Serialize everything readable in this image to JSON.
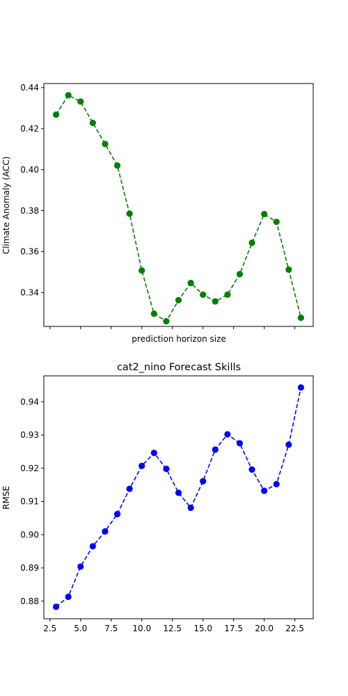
{
  "chart_data": [
    {
      "type": "line",
      "title": "",
      "xlabel": "prediction horizon size",
      "ylabel": "Climate Anomaly (ACC)",
      "xlim": [
        2,
        24
      ],
      "ylim": [
        0.3235,
        0.442
      ],
      "xticks": [
        2.5,
        5.0,
        7.5,
        10.0,
        12.5,
        15.0,
        17.5,
        20.0,
        22.5
      ],
      "xtick_labels_visible": false,
      "yticks": [
        0.34,
        0.36,
        0.38,
        0.4,
        0.42,
        0.44
      ],
      "ytick_labels": [
        "0.34",
        "0.36",
        "0.38",
        "0.40",
        "0.42",
        "0.44"
      ],
      "grid": false,
      "series": [
        {
          "color": "#008000",
          "line_style": "dashed",
          "marker": "circle",
          "x": [
            3,
            4,
            5,
            6,
            7,
            8,
            9,
            10,
            11,
            12,
            13,
            14,
            15,
            16,
            17,
            18,
            19,
            20,
            21,
            22,
            23
          ],
          "values": [
            0.4268,
            0.4363,
            0.4332,
            0.4228,
            0.4125,
            0.402,
            0.3785,
            0.3508,
            0.3297,
            0.326,
            0.3363,
            0.3447,
            0.339,
            0.3357,
            0.339,
            0.349,
            0.3643,
            0.3783,
            0.3745,
            0.3512,
            0.3277
          ]
        }
      ]
    },
    {
      "type": "line",
      "title": "cat2_nino Forecast Skills",
      "xlabel": "",
      "ylabel": "RMSE",
      "xlim": [
        2,
        24
      ],
      "ylim": [
        0.8747,
        0.9478
      ],
      "xticks": [
        2.5,
        5.0,
        7.5,
        10.0,
        12.5,
        15.0,
        17.5,
        20.0,
        22.5
      ],
      "xtick_labels": [
        "2.5",
        "5.0",
        "7.5",
        "10.0",
        "12.5",
        "15.0",
        "17.5",
        "20.0",
        "22.5"
      ],
      "yticks": [
        0.88,
        0.89,
        0.9,
        0.91,
        0.92,
        0.93,
        0.94
      ],
      "ytick_labels": [
        "0.88",
        "0.89",
        "0.90",
        "0.91",
        "0.92",
        "0.93",
        "0.94"
      ],
      "grid": false,
      "series": [
        {
          "color": "#0000ff",
          "line_style": "dashed",
          "marker": "circle",
          "x": [
            3,
            4,
            5,
            6,
            7,
            8,
            9,
            10,
            11,
            12,
            13,
            14,
            15,
            16,
            17,
            18,
            19,
            20,
            21,
            22,
            23
          ],
          "values": [
            0.8783,
            0.8813,
            0.8904,
            0.8965,
            0.901,
            0.9062,
            0.9138,
            0.9207,
            0.9246,
            0.9198,
            0.9126,
            0.9081,
            0.9161,
            0.9256,
            0.9302,
            0.9275,
            0.9196,
            0.9132,
            0.9152,
            0.9271,
            0.9443
          ]
        }
      ]
    }
  ]
}
